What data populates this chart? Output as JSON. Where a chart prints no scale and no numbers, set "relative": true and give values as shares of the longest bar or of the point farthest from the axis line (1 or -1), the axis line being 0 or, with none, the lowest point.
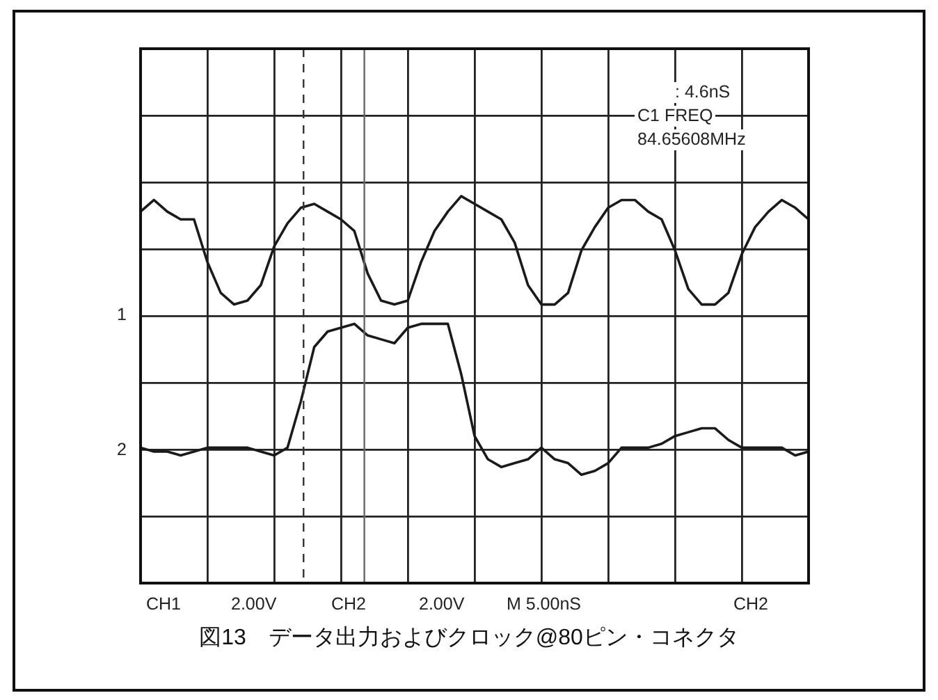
{
  "chart_data": {
    "type": "line",
    "title": "図13　データ出力およびクロック@80ピン・コネクタ",
    "relative": true,
    "marker": "none",
    "grid": true,
    "tick_labels": false,
    "categories": [
      null,
      null,
      null,
      null,
      null,
      null,
      null,
      null,
      null,
      null,
      null,
      null,
      null,
      null,
      null,
      null,
      null,
      null,
      null,
      null,
      null,
      null,
      null,
      null,
      null,
      null,
      null,
      null,
      null,
      null,
      null,
      null,
      null,
      null,
      null,
      null,
      null,
      null,
      null,
      null,
      null,
      null,
      null,
      null,
      null,
      null,
      null,
      null,
      null,
      null,
      null
    ],
    "series": [
      {
        "color": "#1a1a1a",
        "values": [
          0.96,
          0.99,
          0.96,
          0.94,
          0.94,
          0.83,
          0.75,
          0.72,
          0.73,
          0.77,
          0.87,
          0.93,
          0.97,
          0.98,
          0.96,
          0.94,
          0.91,
          0.8,
          0.73,
          0.72,
          0.73,
          0.83,
          0.91,
          0.96,
          1,
          0.98,
          0.96,
          0.94,
          0.88,
          0.77,
          0.72,
          0.72,
          0.75,
          0.86,
          0.92,
          0.97,
          0.99,
          0.99,
          0.96,
          0.94,
          0.86,
          0.76,
          0.72,
          0.72,
          0.75,
          0.85,
          0.92,
          0.96,
          0.99,
          0.97,
          0.94
        ]
      },
      {
        "color": "#1a1a1a",
        "values": [
          0.35,
          0.34,
          0.34,
          0.33,
          0.34,
          0.35,
          0.35,
          0.35,
          0.35,
          0.34,
          0.33,
          0.35,
          0.47,
          0.61,
          0.65,
          0.66,
          0.67,
          0.64,
          0.63,
          0.62,
          0.66,
          0.67,
          0.67,
          0.67,
          0.54,
          0.38,
          0.32,
          0.3,
          0.31,
          0.32,
          0.35,
          0.32,
          0.31,
          0.28,
          0.29,
          0.31,
          0.35,
          0.35,
          0.35,
          0.36,
          0.38,
          0.39,
          0.4,
          0.4,
          0.37,
          0.35,
          0.35,
          0.35,
          0.35,
          0.33,
          0.34
        ]
      }
    ],
    "annotations": [
      ": 4.6nS",
      "C1 FREQ",
      "84.65608MHz",
      "1",
      "2",
      "CH1",
      "2.00V",
      "CH2",
      "2.00V",
      "M 5.00nS",
      "CH2"
    ]
  }
}
